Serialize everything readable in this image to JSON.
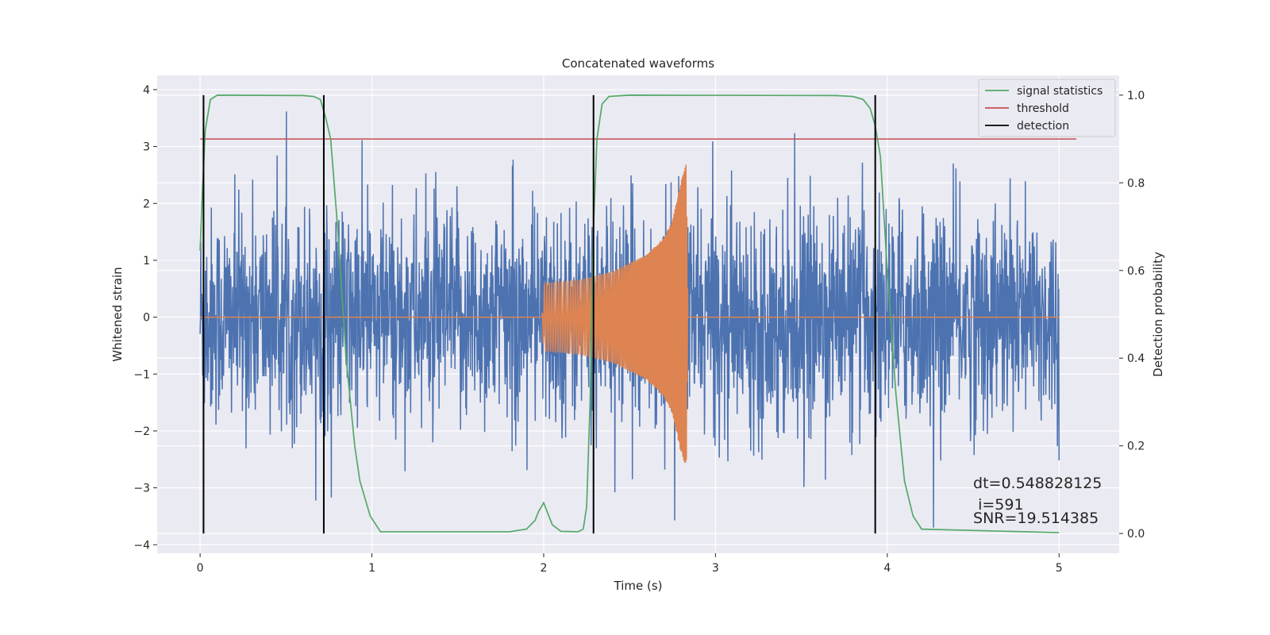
{
  "chart_data": {
    "type": "line",
    "title": "Concatenated waveforms",
    "xlabel": "Time (s)",
    "ylabel": "Whitened strain",
    "ylabel_right": "Detection probability",
    "xlim": [
      -0.25,
      5.35
    ],
    "ylim": [
      -4.15,
      4.25
    ],
    "ylim_right": [
      -0.045,
      1.045
    ],
    "x_ticks": [
      0,
      1,
      2,
      3,
      4,
      5
    ],
    "x_tick_labels": [
      "0",
      "1",
      "2",
      "3",
      "4",
      "5"
    ],
    "y_ticks": [
      -4,
      -3,
      -2,
      -1,
      0,
      1,
      2,
      3,
      4
    ],
    "y_tick_labels": [
      "−4",
      "−3",
      "−2",
      "−1",
      "0",
      "1",
      "2",
      "3",
      "4"
    ],
    "y2_ticks": [
      0.0,
      0.2,
      0.4,
      0.6,
      0.8,
      1.0
    ],
    "y2_tick_labels": [
      "0.0",
      "0.2",
      "0.4",
      "0.6",
      "0.8",
      "1.0"
    ],
    "grid": true,
    "legend_position": "top-right",
    "series": [
      {
        "name": "",
        "axis": "left",
        "color": "#4c72b0",
        "x_range": [
          0,
          5
        ],
        "description_values": "whitened noise strain, amplitude mostly within ±2.5 with spikes to about ±3.7",
        "peak_max": 3.85,
        "peak_min": -3.7
      },
      {
        "name": "",
        "axis": "left",
        "color": "#dd8452",
        "x": [
          0,
          1.99,
          2.0,
          2.2,
          2.4,
          2.6,
          2.7,
          2.75,
          2.8,
          2.83,
          2.84,
          3.0,
          5.0
        ],
        "envelope": [
          0,
          0,
          0.6,
          0.65,
          0.8,
          1.1,
          1.4,
          1.7,
          2.4,
          2.7,
          0,
          0,
          0
        ]
      },
      {
        "name": "signal statistics",
        "axis": "right",
        "color": "#55a868",
        "x": [
          0,
          0.01,
          0.03,
          0.06,
          0.1,
          0.6,
          0.66,
          0.7,
          0.73,
          0.76,
          0.8,
          0.85,
          0.9,
          0.93,
          0.96,
          0.99,
          1.05,
          1.8,
          1.9,
          1.95,
          1.97,
          2.0,
          2.02,
          2.05,
          2.1,
          2.2,
          2.23,
          2.25,
          2.27,
          2.29,
          2.31,
          2.34,
          2.38,
          2.5,
          3.7,
          3.8,
          3.86,
          3.9,
          3.93,
          3.96,
          4.0,
          4.05,
          4.1,
          4.15,
          4.2,
          5.0
        ],
        "y": [
          0.645,
          0.75,
          0.92,
          0.99,
          1.0,
          0.999,
          0.997,
          0.99,
          0.95,
          0.9,
          0.7,
          0.4,
          0.2,
          0.12,
          0.08,
          0.04,
          0.004,
          0.004,
          0.01,
          0.03,
          0.05,
          0.07,
          0.05,
          0.02,
          0.005,
          0.004,
          0.01,
          0.06,
          0.3,
          0.7,
          0.9,
          0.98,
          0.997,
          1.0,
          0.999,
          0.997,
          0.99,
          0.97,
          0.93,
          0.86,
          0.6,
          0.32,
          0.12,
          0.04,
          0.01,
          0.002
        ]
      },
      {
        "name": "threshold",
        "axis": "right",
        "color": "#c44e52",
        "x": [
          0,
          5.1
        ],
        "y": [
          0.9,
          0.9
        ]
      },
      {
        "name": "detection",
        "axis": "right",
        "color": "#000000",
        "vlines_x": [
          0.02,
          0.72,
          2.29,
          3.93
        ],
        "ymin": 0.0,
        "ymax": 1.0
      }
    ],
    "annotations": [
      "dt=0.548828125",
      " i=591",
      "SNR=19.514385"
    ]
  }
}
